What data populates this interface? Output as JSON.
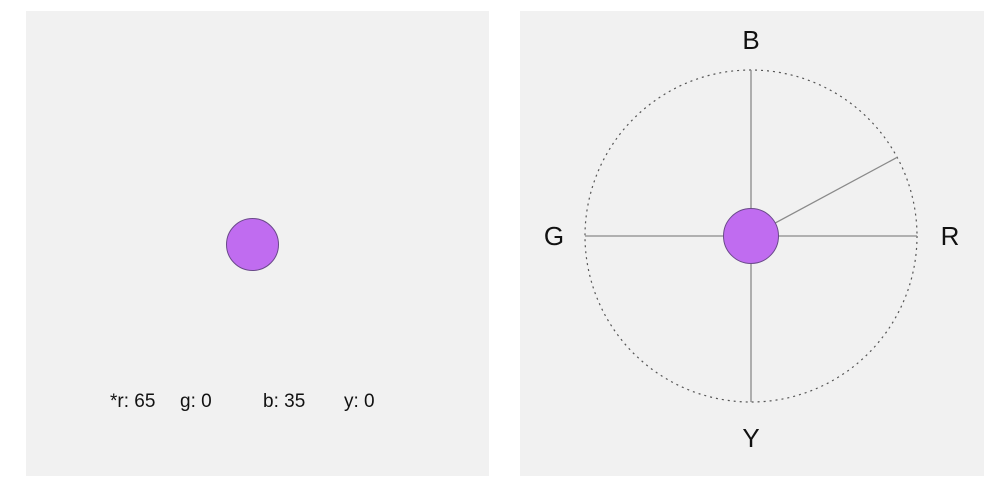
{
  "colors": {
    "panel_background": "#f1f1f1",
    "dot_fill": "#c06cf0",
    "dot_stroke": "#6a4a8a",
    "axis_line": "#8a8a8a",
    "circle_outline": "#555555",
    "text": "#111111"
  },
  "left_panel": {
    "readouts": [
      {
        "text": "*r: 65"
      },
      {
        "text": "g: 0"
      },
      {
        "text": "b: 35"
      },
      {
        "text": "y: 0"
      }
    ]
  },
  "right_panel": {
    "axes": {
      "top": "B",
      "left": "G",
      "right": "R",
      "bottom": "Y"
    },
    "vector": {
      "r": 65,
      "g": 0,
      "b": 35,
      "y": 0
    }
  }
}
